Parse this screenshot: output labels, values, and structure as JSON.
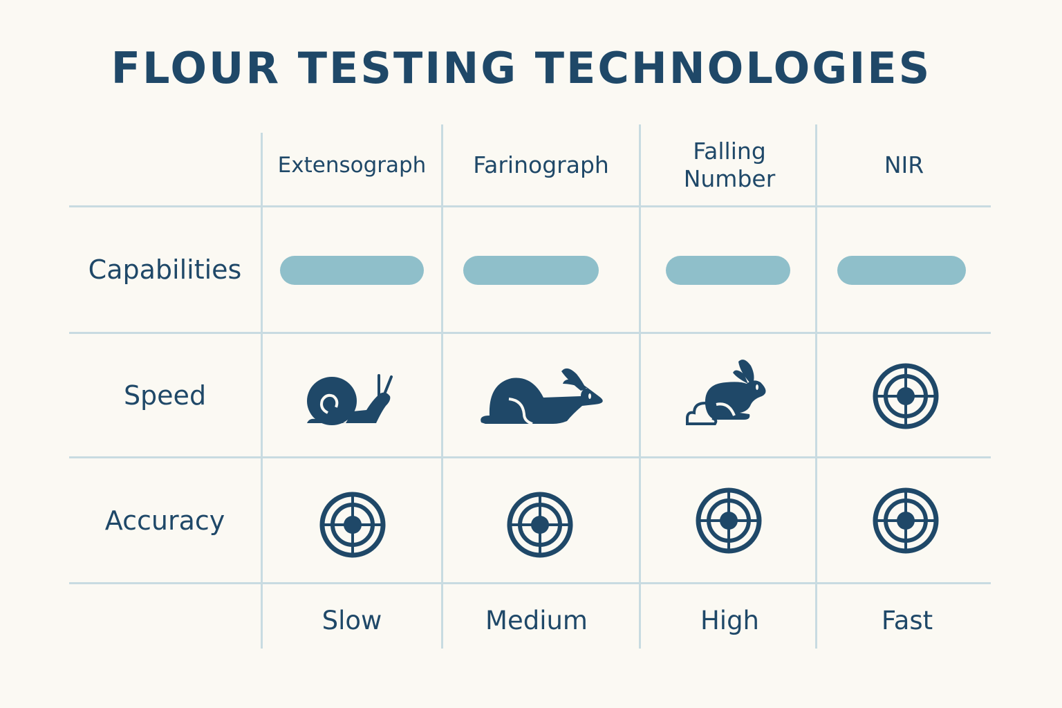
{
  "title": "FLOUR TESTING TECHNOLOGIES",
  "columns": [
    {
      "label": "Extensograph",
      "speed_icon": "snail-icon",
      "accuracy_icon": "target-icon",
      "rating": "Slow"
    },
    {
      "label": "Farinograph",
      "speed_icon": "rabbit-sitting-icon",
      "accuracy_icon": "target-icon",
      "rating": "Medium"
    },
    {
      "label": "Falling Number",
      "speed_icon": "rabbit-running-icon",
      "accuracy_icon": "target-icon",
      "rating": "High"
    },
    {
      "label": "NIR",
      "speed_icon": "target-icon",
      "accuracy_icon": "target-icon",
      "rating": "Fast"
    }
  ],
  "rows": {
    "capabilities": "Capabilities",
    "speed": "Speed",
    "accuracy": "Accuracy"
  },
  "colors": {
    "primary": "#1f4868",
    "pill": "#8fbfca",
    "grid": "#c8dbe1",
    "background": "#fbf9f3"
  }
}
